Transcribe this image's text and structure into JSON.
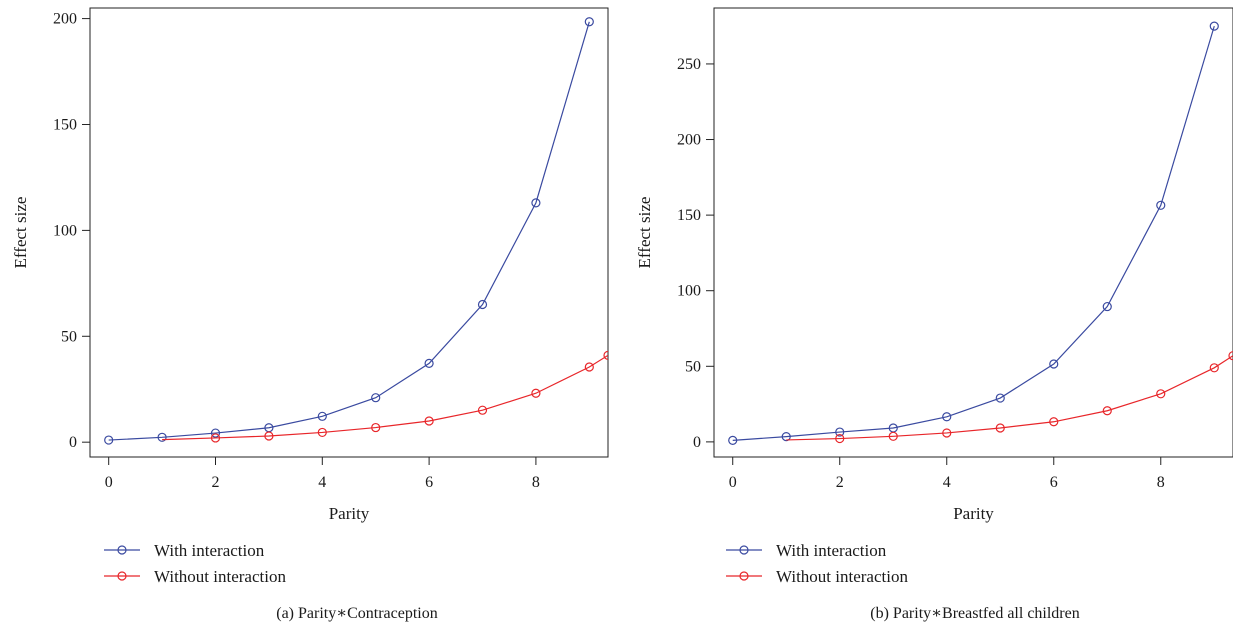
{
  "chart_data": [
    {
      "type": "line",
      "caption": "(a)   Parity∗Contraception",
      "xlabel": "Parity",
      "ylabel": "Effect size",
      "xlim": [
        -0.35,
        9.35
      ],
      "ylim": [
        -7,
        205
      ],
      "x_ticks": [
        0,
        2,
        4,
        6,
        8
      ],
      "y_ticks": [
        0,
        50,
        100,
        150,
        200
      ],
      "grid": false,
      "legend_position": "bottom-left, below plot",
      "series": [
        {
          "name": "With interaction",
          "color": "#3a4aa0",
          "x": [
            0,
            1,
            2,
            3,
            4,
            5,
            6,
            7,
            8,
            9
          ],
          "values": [
            1,
            2.3,
            4.3,
            6.8,
            12.2,
            21,
            37.2,
            65,
            113,
            198.5
          ],
          "markers": [
            0,
            1,
            2,
            3,
            4,
            5,
            6,
            7,
            8,
            9
          ]
        },
        {
          "name": "Without interaction",
          "color": "#e8262a",
          "x": [
            1,
            2,
            3,
            4,
            5,
            6,
            7,
            8,
            9,
            9.35
          ],
          "values": [
            1.2,
            2,
            2.9,
            4.6,
            6.9,
            10,
            15.1,
            23.1,
            35.5,
            41
          ],
          "markers": [
            1,
            2,
            3,
            4,
            5,
            6,
            7,
            8,
            9
          ]
        }
      ]
    },
    {
      "type": "line",
      "caption": "(b)  Parity∗Breastfed all children",
      "xlabel": "Parity",
      "ylabel": "Effect size",
      "xlim": [
        -0.35,
        9.35
      ],
      "ylim": [
        -10,
        287
      ],
      "x_ticks": [
        0,
        2,
        4,
        6,
        8
      ],
      "y_ticks": [
        0,
        50,
        100,
        150,
        200,
        250
      ],
      "grid": false,
      "legend_position": "bottom-left, below plot",
      "series": [
        {
          "name": "With interaction",
          "color": "#3a4aa0",
          "x": [
            0,
            1,
            2,
            3,
            4,
            5,
            6,
            7,
            8,
            9
          ],
          "values": [
            1,
            3.5,
            6.5,
            9.2,
            16.6,
            29,
            51.5,
            89.5,
            156.5,
            275
          ],
          "markers": [
            0,
            1,
            2,
            3,
            4,
            5,
            6,
            7,
            8,
            9
          ]
        },
        {
          "name": "Without interaction",
          "color": "#e8262a",
          "x": [
            1,
            2,
            3,
            4,
            5,
            6,
            7,
            8,
            9,
            9.35
          ],
          "values": [
            1.3,
            2.2,
            3.7,
            5.9,
            9.2,
            13.3,
            20.6,
            31.8,
            49,
            57
          ],
          "markers": [
            1,
            2,
            3,
            4,
            5,
            6,
            7,
            8,
            9
          ]
        }
      ]
    }
  ]
}
